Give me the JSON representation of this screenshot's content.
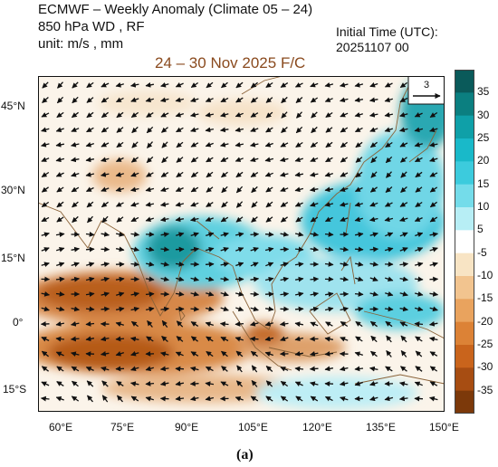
{
  "header": {
    "title": "ECMWF – Weekly Anomaly (Climate 05 – 24)",
    "variables": "850 hPa WD , RF",
    "units": "unit: m/s , mm",
    "forecast_period": "24 – 30 Nov 2025 F/C",
    "init_label": "Initial Time (UTC):",
    "init_value": "20251107  00"
  },
  "map": {
    "lat_ticks": [
      "45°N",
      "30°N",
      "15°N",
      "0°",
      "15°S"
    ],
    "lon_ticks": [
      "60°E",
      "75°E",
      "90°E",
      "105°E",
      "120°E",
      "135°E",
      "150°E"
    ],
    "reference_vector": "3",
    "extent": {
      "lon_min": 55,
      "lon_max": 150,
      "lat_min": -20,
      "lat_max": 50
    }
  },
  "colorbar": {
    "labels": [
      "35",
      "30",
      "25",
      "20",
      "15",
      "10",
      "5",
      "-5",
      "-10",
      "-15",
      "-20",
      "-25",
      "-30",
      "-35"
    ],
    "colors": [
      "#0a5a5a",
      "#0b7f80",
      "#0fa0a8",
      "#19b9c9",
      "#3ccbdd",
      "#74dcea",
      "#b7eef5",
      "#ffffff",
      "#f8e4c4",
      "#f2c48f",
      "#e9a35e",
      "#dc8236",
      "#c9641c",
      "#a74d12",
      "#7c390a"
    ]
  },
  "caption": "(a)"
}
